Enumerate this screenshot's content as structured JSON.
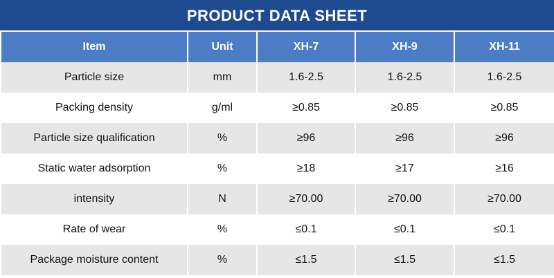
{
  "header": {
    "title": "PRODUCT DATA SHEET"
  },
  "table": {
    "columns": [
      "Item",
      "Unit",
      "XH-7",
      "XH-9",
      "XH-11"
    ],
    "rows": [
      [
        "Particle size",
        "mm",
        "1.6-2.5",
        "1.6-2.5",
        "1.6-2.5"
      ],
      [
        "Packing density",
        "g/ml",
        "≥0.85",
        "≥0.85",
        "≥0.85"
      ],
      [
        "Particle size qualification",
        "%",
        "≥96",
        "≥96",
        "≥96"
      ],
      [
        "Static water adsorption",
        "%",
        "≥18",
        "≥17",
        "≥16"
      ],
      [
        "intensity",
        "N",
        "≥70.00",
        "≥70.00",
        "≥70.00"
      ],
      [
        "Rate of wear",
        "%",
        "≤0.1",
        "≤0.1",
        "≤0.1"
      ],
      [
        "Package moisture content",
        "%",
        "≤1.5",
        "≤1.5",
        "≤1.5"
      ]
    ]
  }
}
